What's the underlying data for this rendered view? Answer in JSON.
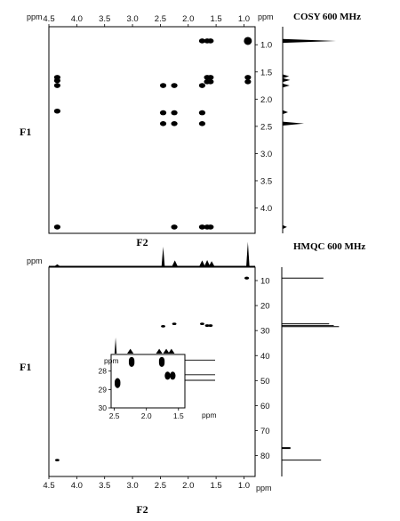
{
  "chart_data": [
    {
      "type": "scatter",
      "title": "COSY 600 MHz",
      "xlabel": "F2",
      "ylabel": "F1",
      "unit": "ppm",
      "xlim": [
        4.5,
        0.8
      ],
      "ylim": [
        0.8,
        4.45
      ],
      "xticks": [
        "4.5",
        "4.0",
        "3.5",
        "3.0",
        "2.5",
        "2.0",
        "1.5",
        "1.0"
      ],
      "yticks": [
        "1.0",
        "1.5",
        "2.0",
        "2.5",
        "3.0",
        "3.5",
        "4.0"
      ],
      "x_tick_values": [
        4.5,
        4.0,
        3.5,
        3.0,
        2.5,
        2.0,
        1.5,
        1.0
      ],
      "y_tick_values": [
        1.0,
        1.5,
        2.0,
        2.5,
        3.0,
        3.5,
        4.0
      ],
      "cross_peaks": [
        {
          "x": 4.35,
          "y": 1.6
        },
        {
          "x": 4.35,
          "y": 1.66
        },
        {
          "x": 4.35,
          "y": 1.75
        },
        {
          "x": 4.35,
          "y": 2.22
        },
        {
          "x": 4.35,
          "y": 4.35
        },
        {
          "x": 2.45,
          "y": 1.75
        },
        {
          "x": 2.45,
          "y": 2.25
        },
        {
          "x": 2.45,
          "y": 2.45
        },
        {
          "x": 2.25,
          "y": 1.75
        },
        {
          "x": 2.25,
          "y": 2.25
        },
        {
          "x": 2.25,
          "y": 2.45
        },
        {
          "x": 2.25,
          "y": 4.35
        },
        {
          "x": 1.75,
          "y": 0.93
        },
        {
          "x": 1.75,
          "y": 1.75
        },
        {
          "x": 1.75,
          "y": 2.25
        },
        {
          "x": 1.75,
          "y": 2.45
        },
        {
          "x": 1.75,
          "y": 4.35
        },
        {
          "x": 1.66,
          "y": 0.93
        },
        {
          "x": 1.66,
          "y": 1.6
        },
        {
          "x": 1.66,
          "y": 1.68
        },
        {
          "x": 1.66,
          "y": 4.35
        },
        {
          "x": 1.6,
          "y": 0.93
        },
        {
          "x": 1.6,
          "y": 1.6
        },
        {
          "x": 1.6,
          "y": 1.68
        },
        {
          "x": 1.6,
          "y": 4.35
        },
        {
          "x": 0.93,
          "y": 1.6
        },
        {
          "x": 0.93,
          "y": 1.68
        },
        {
          "x": 0.93,
          "y": 0.93
        }
      ],
      "projection_peaks": [
        {
          "ppm": 0.93,
          "intensity": 1.0
        },
        {
          "ppm": 1.58,
          "intensity": 0.12
        },
        {
          "ppm": 1.65,
          "intensity": 0.14
        },
        {
          "ppm": 1.75,
          "intensity": 0.13
        },
        {
          "ppm": 2.24,
          "intensity": 0.1
        },
        {
          "ppm": 2.45,
          "intensity": 0.4
        },
        {
          "ppm": 4.35,
          "intensity": 0.08
        }
      ]
    },
    {
      "type": "scatter",
      "title": "HMQC 600 MHz",
      "xlabel": "F2",
      "ylabel": "F1",
      "unit": "ppm",
      "xlim": [
        4.5,
        0.8
      ],
      "ylim": [
        5,
        88
      ],
      "xticks": [
        "4.5",
        "4.0",
        "3.5",
        "3.0",
        "2.5",
        "2.0",
        "1.5",
        "1.0"
      ],
      "yticks": [
        "10",
        "20",
        "30",
        "40",
        "50",
        "60",
        "70",
        "80"
      ],
      "x_tick_values": [
        4.5,
        4.0,
        3.5,
        3.0,
        2.5,
        2.0,
        1.5,
        1.0
      ],
      "y_tick_values": [
        10,
        20,
        30,
        40,
        50,
        60,
        70,
        80
      ],
      "cross_peaks": [
        {
          "x": 0.95,
          "y": 9.0
        },
        {
          "x": 2.45,
          "y": 28.3
        },
        {
          "x": 2.25,
          "y": 27.3
        },
        {
          "x": 1.75,
          "y": 27.3
        },
        {
          "x": 1.66,
          "y": 28.0
        },
        {
          "x": 1.6,
          "y": 28.0
        },
        {
          "x": 4.35,
          "y": 81.8
        }
      ],
      "proton_projection": [
        {
          "ppm": 4.35,
          "intensity": 0.1
        },
        {
          "ppm": 2.45,
          "intensity": 1.0
        },
        {
          "ppm": 2.24,
          "intensity": 0.3
        },
        {
          "ppm": 1.75,
          "intensity": 0.3
        },
        {
          "ppm": 1.66,
          "intensity": 0.32
        },
        {
          "ppm": 1.58,
          "intensity": 0.26
        },
        {
          "ppm": 0.93,
          "intensity": 1.25
        }
      ],
      "carbon_projection": [
        {
          "ppm": 9.0,
          "intensity": 0.72
        },
        {
          "ppm": 27.3,
          "intensity": 0.82
        },
        {
          "ppm": 28.0,
          "intensity": 0.9
        },
        {
          "ppm": 28.4,
          "intensity": 0.99
        },
        {
          "ppm": 77.0,
          "intensity": 0.15
        },
        {
          "ppm": 81.8,
          "intensity": 0.68
        }
      ],
      "inset": {
        "unit": "ppm",
        "xlim": [
          2.55,
          1.4
        ],
        "ylim": [
          27,
          30
        ],
        "xticks": [
          "2.5",
          "2.0",
          "1.5"
        ],
        "yticks": [
          "28",
          "29",
          "30"
        ],
        "x_tick_values": [
          2.5,
          2.0,
          1.5
        ],
        "y_tick_values": [
          28,
          29,
          30
        ],
        "cross_peaks": [
          {
            "x": 2.45,
            "y": 28.6
          },
          {
            "x": 2.45,
            "y": 28.7
          },
          {
            "x": 2.23,
            "y": 27.45
          },
          {
            "x": 2.23,
            "y": 27.55
          },
          {
            "x": 1.76,
            "y": 27.45
          },
          {
            "x": 1.76,
            "y": 27.55
          },
          {
            "x": 1.67,
            "y": 28.25
          },
          {
            "x": 1.59,
            "y": 28.25
          }
        ],
        "projection_peaks": [
          {
            "ppm": 2.48,
            "intensity": 1.0
          },
          {
            "ppm": 2.25,
            "intensity": 0.3
          },
          {
            "ppm": 1.8,
            "intensity": 0.3
          },
          {
            "ppm": 1.69,
            "intensity": 0.3
          },
          {
            "ppm": 1.61,
            "intensity": 0.3
          }
        ],
        "carbon_levels": [
          27.4,
          28.2,
          28.5
        ]
      }
    }
  ]
}
